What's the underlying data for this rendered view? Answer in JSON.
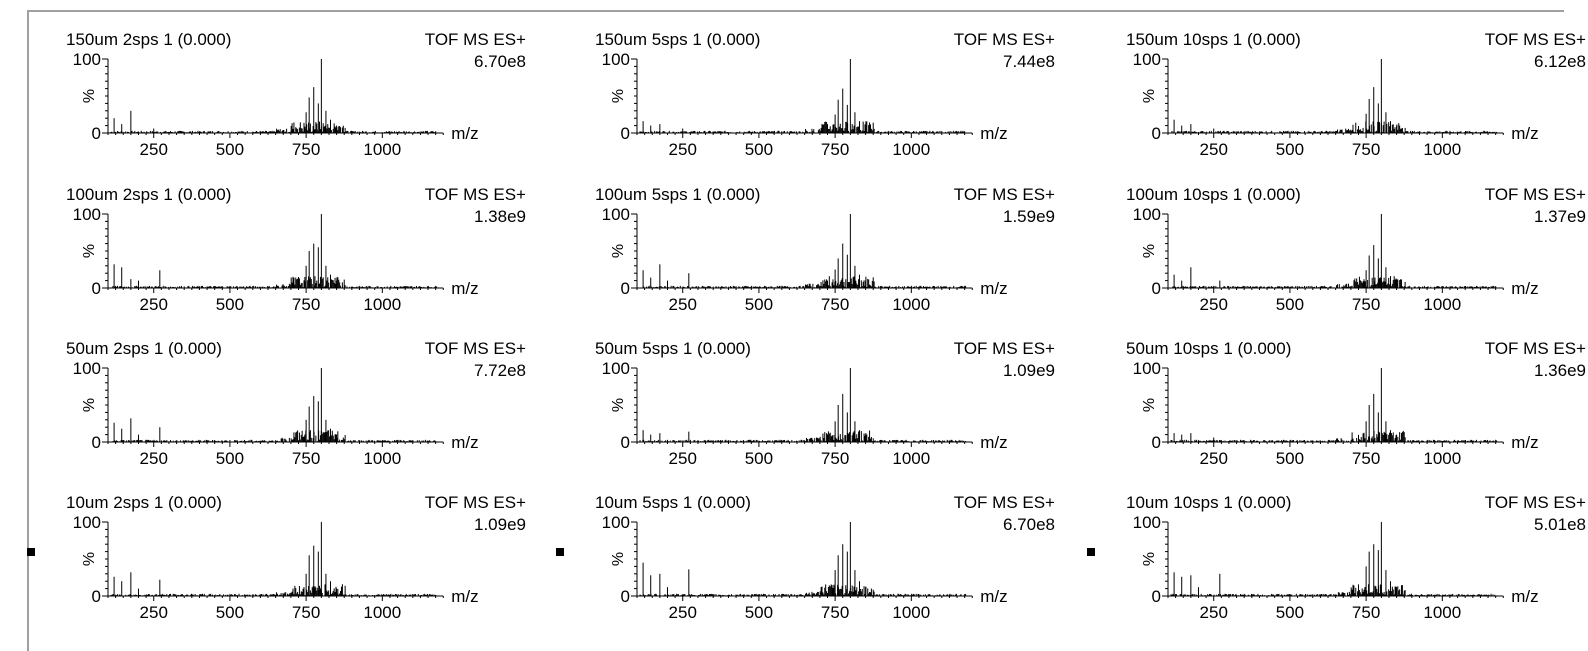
{
  "chart_data": {
    "type": "line",
    "xlabel": "m/z",
    "ylabel": "%",
    "xlim": [
      100,
      1200
    ],
    "ylim": [
      0,
      100
    ],
    "x_ticks": [
      "250",
      "500",
      "750",
      "1000"
    ],
    "y_ticks": [
      "0",
      "100"
    ],
    "panels": [
      {
        "title": "150um 2sps 1 (0.000)",
        "mode": "TOF MS ES+",
        "intensity": "6.70e8",
        "peaks": [
          [
            120,
            20
          ],
          [
            145,
            12
          ],
          [
            175,
            30
          ],
          [
            250,
            6
          ],
          [
            750,
            28
          ],
          [
            760,
            48
          ],
          [
            775,
            62
          ],
          [
            790,
            40
          ],
          [
            800,
            100
          ],
          [
            815,
            30
          ],
          [
            830,
            18
          ],
          [
            850,
            10
          ]
        ]
      },
      {
        "title": "150um 5sps 1 (0.000)",
        "mode": "TOF MS ES+",
        "intensity": "7.44e8",
        "peaks": [
          [
            120,
            16
          ],
          [
            145,
            10
          ],
          [
            175,
            12
          ],
          [
            250,
            6
          ],
          [
            750,
            25
          ],
          [
            760,
            45
          ],
          [
            775,
            60
          ],
          [
            790,
            38
          ],
          [
            800,
            100
          ],
          [
            815,
            28
          ],
          [
            830,
            16
          ],
          [
            850,
            10
          ]
        ]
      },
      {
        "title": "150um 10sps 1 (0.000)",
        "mode": "TOF MS ES+",
        "intensity": "6.12e8",
        "peaks": [
          [
            120,
            18
          ],
          [
            145,
            10
          ],
          [
            175,
            12
          ],
          [
            250,
            6
          ],
          [
            750,
            26
          ],
          [
            760,
            46
          ],
          [
            775,
            62
          ],
          [
            790,
            40
          ],
          [
            800,
            100
          ],
          [
            815,
            28
          ],
          [
            830,
            16
          ],
          [
            850,
            10
          ]
        ]
      },
      {
        "title": "100um 2sps 1 (0.000)",
        "mode": "TOF MS ES+",
        "intensity": "1.38e9",
        "peaks": [
          [
            120,
            32
          ],
          [
            145,
            28
          ],
          [
            175,
            12
          ],
          [
            200,
            10
          ],
          [
            270,
            24
          ],
          [
            750,
            30
          ],
          [
            760,
            50
          ],
          [
            775,
            60
          ],
          [
            790,
            55
          ],
          [
            800,
            100
          ],
          [
            815,
            30
          ],
          [
            830,
            18
          ],
          [
            850,
            10
          ]
        ]
      },
      {
        "title": "100um 5sps 1 (0.000)",
        "mode": "TOF MS ES+",
        "intensity": "1.59e9",
        "peaks": [
          [
            120,
            24
          ],
          [
            145,
            14
          ],
          [
            175,
            32
          ],
          [
            200,
            10
          ],
          [
            270,
            20
          ],
          [
            750,
            25
          ],
          [
            760,
            40
          ],
          [
            775,
            60
          ],
          [
            790,
            45
          ],
          [
            800,
            100
          ],
          [
            815,
            30
          ],
          [
            830,
            18
          ],
          [
            850,
            10
          ]
        ]
      },
      {
        "title": "100um 10sps 1 (0.000)",
        "mode": "TOF MS ES+",
        "intensity": "1.37e9",
        "peaks": [
          [
            120,
            18
          ],
          [
            145,
            10
          ],
          [
            175,
            28
          ],
          [
            270,
            10
          ],
          [
            750,
            24
          ],
          [
            760,
            44
          ],
          [
            775,
            58
          ],
          [
            790,
            40
          ],
          [
            800,
            100
          ],
          [
            815,
            28
          ],
          [
            830,
            16
          ],
          [
            850,
            10
          ]
        ]
      },
      {
        "title": "50um 2sps 1 (0.000)",
        "mode": "TOF MS ES+",
        "intensity": "7.72e8",
        "peaks": [
          [
            120,
            26
          ],
          [
            145,
            18
          ],
          [
            175,
            32
          ],
          [
            200,
            10
          ],
          [
            270,
            20
          ],
          [
            750,
            30
          ],
          [
            760,
            48
          ],
          [
            775,
            62
          ],
          [
            790,
            55
          ],
          [
            800,
            100
          ],
          [
            815,
            30
          ],
          [
            830,
            18
          ],
          [
            850,
            10
          ]
        ]
      },
      {
        "title": "50um 5sps 1 (0.000)",
        "mode": "TOF MS ES+",
        "intensity": "1.09e9",
        "peaks": [
          [
            120,
            16
          ],
          [
            145,
            10
          ],
          [
            175,
            12
          ],
          [
            270,
            14
          ],
          [
            750,
            28
          ],
          [
            760,
            50
          ],
          [
            775,
            65
          ],
          [
            790,
            40
          ],
          [
            800,
            100
          ],
          [
            815,
            28
          ],
          [
            830,
            16
          ],
          [
            850,
            10
          ]
        ]
      },
      {
        "title": "50um 10sps 1 (0.000)",
        "mode": "TOF MS ES+",
        "intensity": "1.36e9",
        "peaks": [
          [
            120,
            12
          ],
          [
            145,
            10
          ],
          [
            175,
            12
          ],
          [
            250,
            6
          ],
          [
            750,
            28
          ],
          [
            760,
            50
          ],
          [
            775,
            65
          ],
          [
            790,
            40
          ],
          [
            800,
            100
          ],
          [
            815,
            28
          ],
          [
            830,
            16
          ],
          [
            850,
            10
          ]
        ]
      },
      {
        "title": "10um 2sps 1 (0.000)",
        "mode": "TOF MS ES+",
        "intensity": "1.09e9",
        "peaks": [
          [
            120,
            26
          ],
          [
            145,
            20
          ],
          [
            175,
            32
          ],
          [
            200,
            10
          ],
          [
            270,
            22
          ],
          [
            750,
            30
          ],
          [
            760,
            55
          ],
          [
            775,
            68
          ],
          [
            790,
            60
          ],
          [
            800,
            100
          ],
          [
            815,
            30
          ],
          [
            830,
            20
          ],
          [
            850,
            10
          ]
        ]
      },
      {
        "title": "10um 5sps 1 (0.000)",
        "mode": "TOF MS ES+",
        "intensity": "6.70e8",
        "peaks": [
          [
            120,
            45
          ],
          [
            145,
            28
          ],
          [
            175,
            30
          ],
          [
            200,
            12
          ],
          [
            270,
            36
          ],
          [
            750,
            35
          ],
          [
            760,
            55
          ],
          [
            775,
            70
          ],
          [
            790,
            60
          ],
          [
            800,
            100
          ],
          [
            815,
            35
          ],
          [
            830,
            20
          ],
          [
            850,
            12
          ]
        ]
      },
      {
        "title": "10um 10sps 1 (0.000)",
        "mode": "TOF MS ES+",
        "intensity": "5.01e8",
        "peaks": [
          [
            120,
            32
          ],
          [
            145,
            26
          ],
          [
            175,
            28
          ],
          [
            200,
            12
          ],
          [
            270,
            30
          ],
          [
            750,
            40
          ],
          [
            760,
            60
          ],
          [
            775,
            70
          ],
          [
            790,
            62
          ],
          [
            800,
            100
          ],
          [
            815,
            35
          ],
          [
            830,
            20
          ],
          [
            850,
            12
          ]
        ]
      }
    ]
  }
}
